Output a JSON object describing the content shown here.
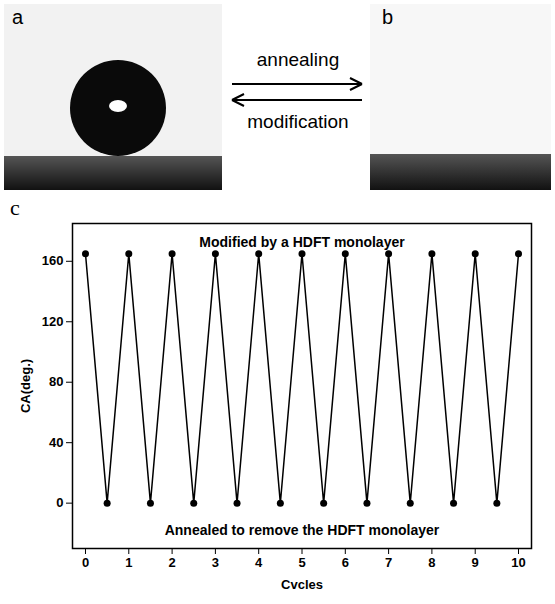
{
  "figure": {
    "panel_labels": [
      "a",
      "b",
      "c"
    ],
    "arrows": [
      "annealing",
      "modification"
    ]
  },
  "chart_data": {
    "type": "line",
    "annotations": [
      "Modified by a HDFT monolayer",
      "Annealed to remove the HDFT monolayer"
    ],
    "x_label": "Cvcles",
    "y_label": "CA(deg.)",
    "x": [
      0,
      0.5,
      1,
      1.5,
      2,
      2.5,
      3,
      3.5,
      4,
      4.5,
      5,
      5.5,
      6,
      6.5,
      7,
      7.5,
      8,
      8.5,
      9,
      9.5,
      10
    ],
    "values": [
      165,
      0,
      165,
      0,
      165,
      0,
      165,
      0,
      165,
      0,
      165,
      0,
      165,
      0,
      165,
      0,
      165,
      0,
      165,
      0,
      165
    ],
    "color": "#000000",
    "marker": "circle",
    "line_style": "solid",
    "xlim": [
      -0.3,
      10.3
    ],
    "xticks": [
      0,
      1,
      2,
      3,
      4,
      5,
      6,
      7,
      8,
      9,
      10
    ],
    "ylim": [
      -30,
      185
    ],
    "yticks": [
      0,
      40,
      80,
      120,
      160
    ]
  }
}
